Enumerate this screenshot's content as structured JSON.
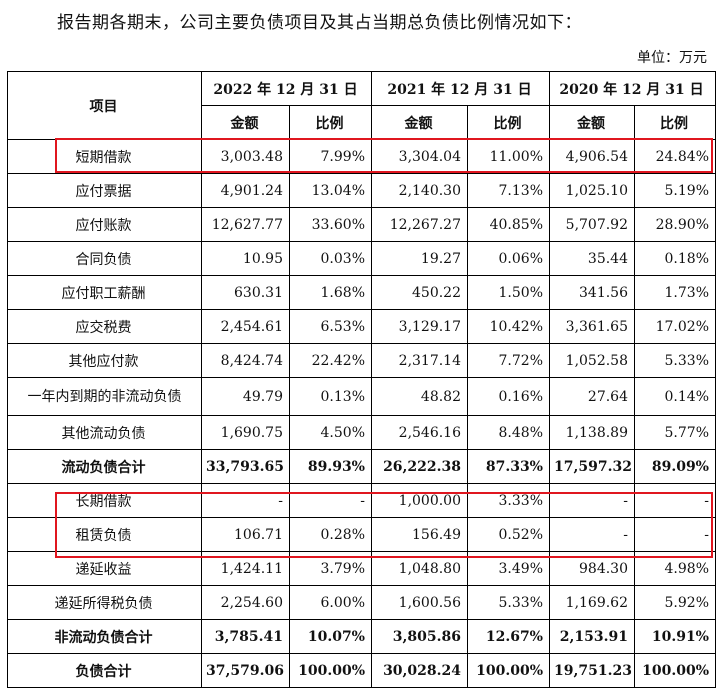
{
  "intro": "报告期各期末，公司主要负债项目及其占当期总负债比例情况如下：",
  "unit": "单位：万元",
  "table": {
    "item_header": "项目",
    "periods": [
      "2022 年 12 月 31 日",
      "2021 年 12 月 31 日",
      "2020 年 12 月 31 日"
    ],
    "amount_label": "金额",
    "ratio_label": "比例",
    "rows": [
      {
        "item": "短期借款",
        "v": [
          "3,003.48",
          "7.99%",
          "3,304.04",
          "11.00%",
          "4,906.54",
          "24.84%"
        ]
      },
      {
        "item": "应付票据",
        "v": [
          "4,901.24",
          "13.04%",
          "2,140.30",
          "7.13%",
          "1,025.10",
          "5.19%"
        ]
      },
      {
        "item": "应付账款",
        "v": [
          "12,627.77",
          "33.60%",
          "12,267.27",
          "40.85%",
          "5,707.92",
          "28.90%"
        ]
      },
      {
        "item": "合同负债",
        "v": [
          "10.95",
          "0.03%",
          "19.27",
          "0.06%",
          "35.44",
          "0.18%"
        ]
      },
      {
        "item": "应付职工薪酬",
        "v": [
          "630.31",
          "1.68%",
          "450.22",
          "1.50%",
          "341.56",
          "1.73%"
        ]
      },
      {
        "item": "应交税费",
        "v": [
          "2,454.61",
          "6.53%",
          "3,129.17",
          "10.42%",
          "3,361.65",
          "17.02%"
        ]
      },
      {
        "item": "其他应付款",
        "v": [
          "8,424.74",
          "22.42%",
          "2,317.14",
          "7.72%",
          "1,052.58",
          "5.33%"
        ]
      },
      {
        "item": "一年内到期的非流动负债",
        "v": [
          "49.79",
          "0.13%",
          "48.82",
          "0.16%",
          "27.64",
          "0.14%"
        ]
      },
      {
        "item": "其他流动负债",
        "v": [
          "1,690.75",
          "4.50%",
          "2,546.16",
          "8.48%",
          "1,138.89",
          "5.77%"
        ]
      },
      {
        "item": "流动负债合计",
        "v": [
          "33,793.65",
          "89.93%",
          "26,222.38",
          "87.33%",
          "17,597.32",
          "89.09%"
        ]
      },
      {
        "item": "长期借款",
        "v": [
          "-",
          "-",
          "1,000.00",
          "3.33%",
          "-",
          "-"
        ]
      },
      {
        "item": "租赁负债",
        "v": [
          "106.71",
          "0.28%",
          "156.49",
          "0.52%",
          "-",
          "-"
        ]
      },
      {
        "item": "递延收益",
        "v": [
          "1,424.11",
          "3.79%",
          "1,048.80",
          "3.49%",
          "984.30",
          "4.98%"
        ]
      },
      {
        "item": "递延所得税负债",
        "v": [
          "2,254.60",
          "6.00%",
          "1,600.56",
          "5.33%",
          "1,169.62",
          "5.92%"
        ]
      },
      {
        "item": "非流动负债合计",
        "v": [
          "3,785.41",
          "10.07%",
          "3,805.86",
          "12.67%",
          "2,153.91",
          "10.91%"
        ]
      },
      {
        "item": "负债合计",
        "v": [
          "37,579.06",
          "100.00%",
          "30,028.24",
          "100.00%",
          "19,751.23",
          "100.00%"
        ]
      }
    ]
  },
  "highlight_color": "#e0161f"
}
